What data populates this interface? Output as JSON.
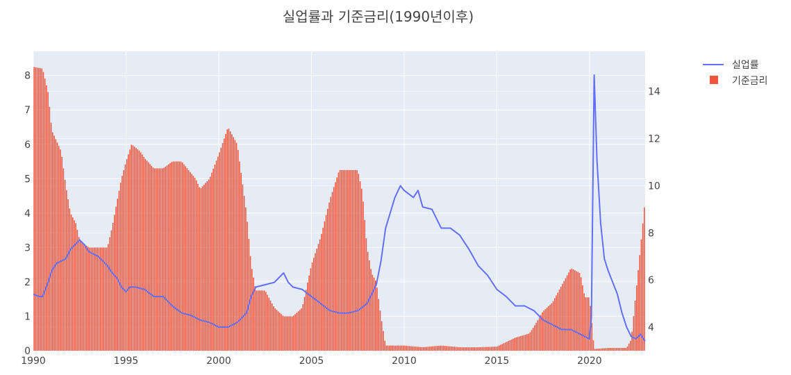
{
  "chart_data": {
    "type": "bar+line",
    "title": "실업률과 기준금리(1990년이후)",
    "xlabel": "",
    "ylabel_left": "",
    "ylabel_right": "",
    "x_range": [
      1990,
      2023.0
    ],
    "x_ticks": [
      "1990",
      "1995",
      "2000",
      "2005",
      "2010",
      "2015",
      "2020"
    ],
    "y_left_range": [
      0,
      8.7
    ],
    "y_left_ticks": [
      "0",
      "1",
      "2",
      "3",
      "4",
      "5",
      "6",
      "7",
      "8"
    ],
    "y_right_range": [
      3.0,
      15.7
    ],
    "y_right_ticks": [
      "4",
      "6",
      "8",
      "10",
      "12",
      "14"
    ],
    "grid": true,
    "legend_position": "top-right",
    "series": [
      {
        "name": "실업률",
        "kind": "line",
        "axis": "right",
        "color": "#636efa",
        "points": [
          [
            1990.0,
            5.4
          ],
          [
            1990.3,
            5.3
          ],
          [
            1990.5,
            5.3
          ],
          [
            1990.75,
            5.8
          ],
          [
            1991.0,
            6.4
          ],
          [
            1991.25,
            6.7
          ],
          [
            1991.5,
            6.8
          ],
          [
            1991.75,
            6.9
          ],
          [
            1992.0,
            7.3
          ],
          [
            1992.5,
            7.7
          ],
          [
            1992.75,
            7.5
          ],
          [
            1993.0,
            7.2
          ],
          [
            1993.5,
            7.0
          ],
          [
            1994.0,
            6.6
          ],
          [
            1994.25,
            6.3
          ],
          [
            1994.5,
            6.1
          ],
          [
            1994.75,
            5.7
          ],
          [
            1995.0,
            5.5
          ],
          [
            1995.2,
            5.7
          ],
          [
            1995.5,
            5.7
          ],
          [
            1996.0,
            5.6
          ],
          [
            1996.5,
            5.3
          ],
          [
            1997.0,
            5.3
          ],
          [
            1997.5,
            4.9
          ],
          [
            1998.0,
            4.6
          ],
          [
            1998.5,
            4.5
          ],
          [
            1999.0,
            4.3
          ],
          [
            1999.5,
            4.2
          ],
          [
            2000.0,
            4.0
          ],
          [
            2000.5,
            4.0
          ],
          [
            2001.0,
            4.2
          ],
          [
            2001.5,
            4.6
          ],
          [
            2001.75,
            5.3
          ],
          [
            2002.0,
            5.7
          ],
          [
            2002.5,
            5.8
          ],
          [
            2003.0,
            5.9
          ],
          [
            2003.5,
            6.3
          ],
          [
            2003.75,
            5.9
          ],
          [
            2004.0,
            5.7
          ],
          [
            2004.5,
            5.6
          ],
          [
            2005.0,
            5.3
          ],
          [
            2005.5,
            5.0
          ],
          [
            2006.0,
            4.7
          ],
          [
            2006.5,
            4.6
          ],
          [
            2007.0,
            4.6
          ],
          [
            2007.5,
            4.7
          ],
          [
            2008.0,
            5.0
          ],
          [
            2008.5,
            5.8
          ],
          [
            2008.75,
            6.8
          ],
          [
            2009.0,
            8.2
          ],
          [
            2009.5,
            9.5
          ],
          [
            2009.8,
            10.0
          ],
          [
            2010.0,
            9.8
          ],
          [
            2010.5,
            9.5
          ],
          [
            2010.75,
            9.8
          ],
          [
            2011.0,
            9.1
          ],
          [
            2011.5,
            9.0
          ],
          [
            2012.0,
            8.2
          ],
          [
            2012.5,
            8.2
          ],
          [
            2013.0,
            7.9
          ],
          [
            2013.5,
            7.3
          ],
          [
            2014.0,
            6.6
          ],
          [
            2014.5,
            6.2
          ],
          [
            2015.0,
            5.6
          ],
          [
            2015.5,
            5.3
          ],
          [
            2016.0,
            4.9
          ],
          [
            2016.5,
            4.9
          ],
          [
            2017.0,
            4.7
          ],
          [
            2017.5,
            4.3
          ],
          [
            2018.0,
            4.1
          ],
          [
            2018.5,
            3.9
          ],
          [
            2019.0,
            3.9
          ],
          [
            2019.5,
            3.7
          ],
          [
            2019.99,
            3.5
          ],
          [
            2020.1,
            4.4
          ],
          [
            2020.25,
            14.7
          ],
          [
            2020.4,
            11.1
          ],
          [
            2020.6,
            8.4
          ],
          [
            2020.8,
            6.9
          ],
          [
            2021.0,
            6.4
          ],
          [
            2021.5,
            5.4
          ],
          [
            2021.75,
            4.6
          ],
          [
            2022.0,
            4.0
          ],
          [
            2022.25,
            3.6
          ],
          [
            2022.5,
            3.5
          ],
          [
            2022.75,
            3.7
          ],
          [
            2023.0,
            3.4
          ]
        ]
      },
      {
        "name": "기준금리",
        "kind": "bar",
        "axis": "left",
        "color": "#ef553b",
        "points": [
          [
            1990.0,
            8.25
          ],
          [
            1990.5,
            8.2
          ],
          [
            1990.8,
            7.5
          ],
          [
            1991.0,
            6.4
          ],
          [
            1991.5,
            5.8
          ],
          [
            1991.75,
            4.8
          ],
          [
            1992.0,
            4.0
          ],
          [
            1992.3,
            3.7
          ],
          [
            1992.5,
            3.2
          ],
          [
            1993.0,
            3.0
          ],
          [
            1994.0,
            3.0
          ],
          [
            1994.25,
            3.6
          ],
          [
            1994.5,
            4.3
          ],
          [
            1994.75,
            5.0
          ],
          [
            1995.0,
            5.5
          ],
          [
            1995.3,
            6.0
          ],
          [
            1995.75,
            5.8
          ],
          [
            1996.0,
            5.6
          ],
          [
            1996.5,
            5.3
          ],
          [
            1997.0,
            5.3
          ],
          [
            1997.5,
            5.5
          ],
          [
            1998.0,
            5.5
          ],
          [
            1998.75,
            5.0
          ],
          [
            1999.0,
            4.7
          ],
          [
            1999.5,
            5.0
          ],
          [
            2000.0,
            5.7
          ],
          [
            2000.5,
            6.5
          ],
          [
            2001.0,
            6.0
          ],
          [
            2001.25,
            5.0
          ],
          [
            2001.5,
            4.0
          ],
          [
            2001.75,
            2.5
          ],
          [
            2002.0,
            1.75
          ],
          [
            2002.5,
            1.75
          ],
          [
            2003.0,
            1.25
          ],
          [
            2003.5,
            1.0
          ],
          [
            2004.0,
            1.0
          ],
          [
            2004.5,
            1.25
          ],
          [
            2005.0,
            2.5
          ],
          [
            2005.5,
            3.3
          ],
          [
            2006.0,
            4.4
          ],
          [
            2006.5,
            5.25
          ],
          [
            2007.0,
            5.25
          ],
          [
            2007.5,
            5.25
          ],
          [
            2007.75,
            4.6
          ],
          [
            2008.0,
            3.0
          ],
          [
            2008.25,
            2.25
          ],
          [
            2008.5,
            2.0
          ],
          [
            2008.75,
            1.0
          ],
          [
            2009.0,
            0.15
          ],
          [
            2010.0,
            0.15
          ],
          [
            2011.0,
            0.1
          ],
          [
            2012.0,
            0.15
          ],
          [
            2013.0,
            0.1
          ],
          [
            2014.0,
            0.1
          ],
          [
            2015.0,
            0.12
          ],
          [
            2016.0,
            0.38
          ],
          [
            2016.75,
            0.5
          ],
          [
            2017.0,
            0.7
          ],
          [
            2017.5,
            1.15
          ],
          [
            2018.0,
            1.4
          ],
          [
            2018.5,
            1.9
          ],
          [
            2019.0,
            2.4
          ],
          [
            2019.5,
            2.25
          ],
          [
            2019.75,
            1.55
          ],
          [
            2020.0,
            1.55
          ],
          [
            2020.25,
            0.05
          ],
          [
            2021.0,
            0.08
          ],
          [
            2022.0,
            0.08
          ],
          [
            2022.25,
            0.33
          ],
          [
            2022.5,
            1.68
          ],
          [
            2022.75,
            3.0
          ],
          [
            2023.0,
            4.4
          ]
        ]
      }
    ]
  },
  "legend": {
    "items": [
      "실업률",
      "기준금리"
    ]
  }
}
